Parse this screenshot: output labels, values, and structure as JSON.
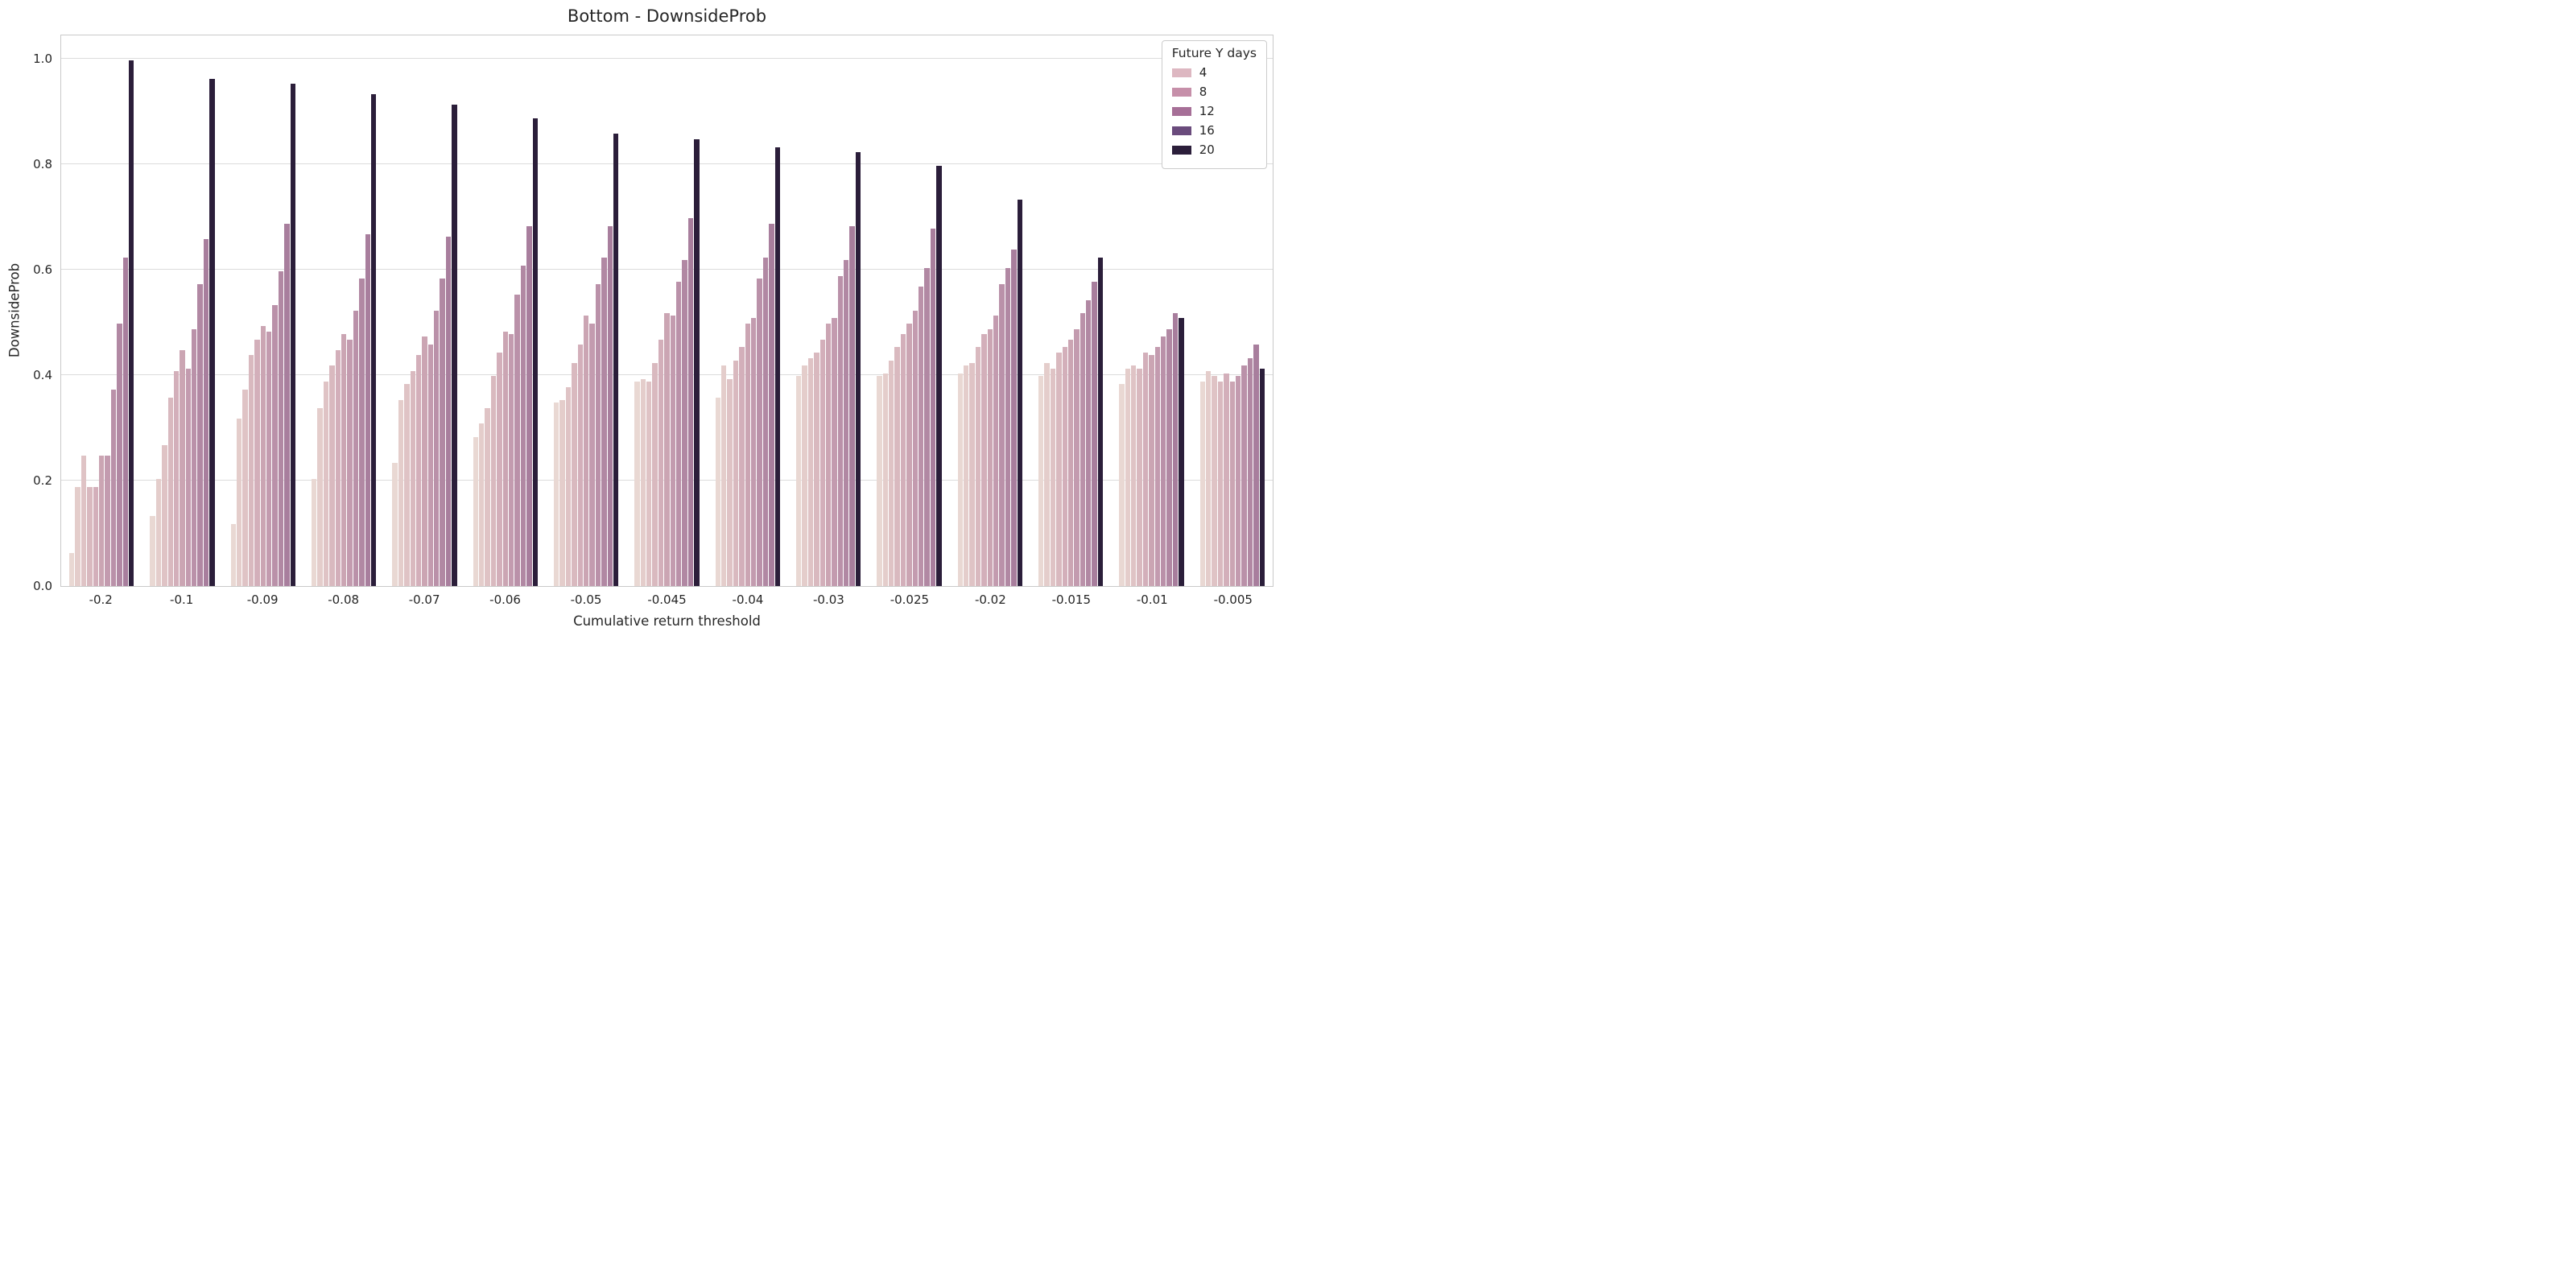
{
  "chart_data": {
    "type": "bar",
    "title": "Bottom - DownsideProb",
    "xlabel": "Cumulative return threshold",
    "ylabel": "DownsideProb",
    "categories": [
      "-0.2",
      "-0.1",
      "-0.09",
      "-0.08",
      "-0.07",
      "-0.06",
      "-0.05",
      "-0.045",
      "-0.04",
      "-0.03",
      "-0.025",
      "-0.02",
      "-0.015",
      "-0.01",
      "-0.005"
    ],
    "bars_per_group": 11,
    "series_colors": [
      "#e9d8d3",
      "#e4cdcb",
      "#dfc3c5",
      "#d9b9bf",
      "#d3afba",
      "#cba5b3",
      "#c39baf",
      "#ba91a9",
      "#b188a3",
      "#a87e9d",
      "#2b1e3a"
    ],
    "groups": [
      {
        "category": "-0.2",
        "values": [
          0.065,
          0.19,
          0.25,
          0.19,
          0.19,
          0.25,
          0.25,
          0.375,
          0.5,
          0.625,
          1.0
        ]
      },
      {
        "category": "-0.1",
        "values": [
          0.135,
          0.205,
          0.27,
          0.36,
          0.41,
          0.45,
          0.415,
          0.49,
          0.575,
          0.66,
          0.965
        ]
      },
      {
        "category": "-0.09",
        "values": [
          0.12,
          0.32,
          0.375,
          0.44,
          0.47,
          0.495,
          0.485,
          0.535,
          0.6,
          0.69,
          0.955
        ]
      },
      {
        "category": "-0.08",
        "values": [
          0.205,
          0.34,
          0.39,
          0.42,
          0.45,
          0.48,
          0.47,
          0.525,
          0.585,
          0.67,
          0.935
        ]
      },
      {
        "category": "-0.07",
        "values": [
          0.235,
          0.355,
          0.385,
          0.41,
          0.44,
          0.475,
          0.46,
          0.525,
          0.585,
          0.665,
          0.915
        ]
      },
      {
        "category": "-0.06",
        "values": [
          0.285,
          0.31,
          0.34,
          0.4,
          0.445,
          0.485,
          0.48,
          0.555,
          0.61,
          0.685,
          0.89
        ]
      },
      {
        "category": "-0.05",
        "values": [
          0.35,
          0.355,
          0.38,
          0.425,
          0.46,
          0.515,
          0.5,
          0.575,
          0.625,
          0.685,
          0.86
        ]
      },
      {
        "category": "-0.045",
        "values": [
          0.39,
          0.395,
          0.39,
          0.425,
          0.47,
          0.52,
          0.515,
          0.58,
          0.62,
          0.7,
          0.85
        ]
      },
      {
        "category": "-0.04",
        "values": [
          0.36,
          0.42,
          0.395,
          0.43,
          0.455,
          0.5,
          0.51,
          0.585,
          0.625,
          0.69,
          0.835
        ]
      },
      {
        "category": "-0.03",
        "values": [
          0.4,
          0.42,
          0.435,
          0.445,
          0.47,
          0.5,
          0.51,
          0.59,
          0.62,
          0.685,
          0.825
        ]
      },
      {
        "category": "-0.025",
        "values": [
          0.4,
          0.405,
          0.43,
          0.455,
          0.48,
          0.5,
          0.525,
          0.57,
          0.605,
          0.68,
          0.8
        ]
      },
      {
        "category": "-0.02",
        "values": [
          0.405,
          0.42,
          0.425,
          0.455,
          0.48,
          0.49,
          0.515,
          0.575,
          0.605,
          0.64,
          0.735
        ]
      },
      {
        "category": "-0.015",
        "values": [
          0.4,
          0.425,
          0.415,
          0.445,
          0.455,
          0.47,
          0.49,
          0.52,
          0.545,
          0.58,
          0.625
        ]
      },
      {
        "category": "-0.01",
        "values": [
          0.385,
          0.415,
          0.42,
          0.415,
          0.445,
          0.44,
          0.455,
          0.475,
          0.49,
          0.52,
          0.51
        ]
      },
      {
        "category": "-0.005",
        "values": [
          0.39,
          0.41,
          0.4,
          0.39,
          0.405,
          0.39,
          0.4,
          0.42,
          0.435,
          0.46,
          0.415
        ]
      }
    ],
    "yticks": [
      "0.0",
      "0.2",
      "0.4",
      "0.6",
      "0.8",
      "1.0"
    ],
    "ylim": [
      0,
      1.048
    ],
    "grid": true,
    "legend": {
      "title": "Future Y days",
      "position": "upper right",
      "entries": [
        {
          "label": "4",
          "color": "#ddb7c1"
        },
        {
          "label": "8",
          "color": "#c68fa9"
        },
        {
          "label": "12",
          "color": "#a66f97"
        },
        {
          "label": "16",
          "color": "#6a4b7c"
        },
        {
          "label": "20",
          "color": "#2b1e3a"
        }
      ]
    },
    "colors": {
      "background": "#ffffff",
      "grid": "#dcdcdc",
      "spine": "#c9c9c9",
      "text": "#262626"
    }
  }
}
